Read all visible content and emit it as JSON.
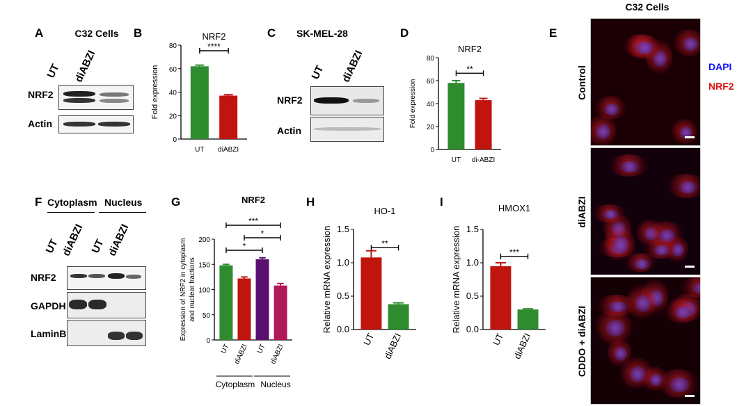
{
  "panel_letters": {
    "A": "A",
    "B": "B",
    "C": "C",
    "D": "D",
    "E": "E",
    "F": "F",
    "G": "G",
    "H": "H",
    "I": "I"
  },
  "panelA": {
    "title": "C32 Cells",
    "lanes": [
      "UT",
      "diABZI"
    ],
    "rows": [
      "NRF2",
      "Actin"
    ]
  },
  "panelC": {
    "title": "SK-MEL-28",
    "lanes": [
      "UT",
      "diABZI"
    ],
    "rows": [
      "NRF2",
      "Actin"
    ]
  },
  "panelF": {
    "groups": [
      "Cytoplasm",
      "Nucleus"
    ],
    "lanes": [
      "UT",
      "diABZI",
      "UT",
      "diABZI"
    ],
    "rows": [
      "NRF2",
      "GAPDH",
      "LaminB"
    ]
  },
  "panelE": {
    "title": "C32 Cells",
    "legend": [
      "DAPI",
      "NRF2"
    ],
    "legend_colors": [
      "#1010ff",
      "#e01010"
    ],
    "rows": [
      "Control",
      "diABZI",
      "CDDO + diABZI"
    ]
  },
  "chart_data": [
    {
      "id": "B",
      "type": "bar",
      "title": "NRF2",
      "categories": [
        "UT",
        "diABZI"
      ],
      "values": [
        62,
        37
      ],
      "errors": [
        1,
        0.8
      ],
      "colors": [
        "#2e8b2e",
        "#c0150f"
      ],
      "ylabel": "Fold expression",
      "ylim": [
        0,
        80
      ],
      "yticks": [
        0,
        20,
        40,
        60,
        80
      ],
      "annotations": [
        {
          "from": 0,
          "to": 1,
          "label": "****"
        }
      ]
    },
    {
      "id": "D",
      "type": "bar",
      "title": "NRF2",
      "categories": [
        "UT",
        "di-ABZI"
      ],
      "values": [
        58,
        43
      ],
      "errors": [
        2,
        1.5
      ],
      "colors": [
        "#2e8b2e",
        "#c0150f"
      ],
      "ylabel": "Fold expression",
      "ylim": [
        0,
        80
      ],
      "yticks": [
        0,
        20,
        40,
        60,
        80
      ],
      "annotations": [
        {
          "from": 0,
          "to": 1,
          "label": "**"
        }
      ]
    },
    {
      "id": "G",
      "type": "bar",
      "title": "NRF2",
      "categories": [
        "UT",
        "diABZI",
        "UT",
        "diABZI"
      ],
      "values": [
        148,
        122,
        160,
        108
      ],
      "errors": [
        2,
        3,
        3,
        4
      ],
      "colors": [
        "#2e8b2e",
        "#c0150f",
        "#5a1070",
        "#b0185a"
      ],
      "ylabel": "Expression of NRF2 in cytoplasm and nuclear fractions",
      "ylim": [
        0,
        200
      ],
      "yticks": [
        0,
        50,
        100,
        150,
        200
      ],
      "groups": [
        "Cytoplasm",
        "Nucleus"
      ],
      "annotations": [
        {
          "from": 0,
          "to": 3,
          "label": "***"
        },
        {
          "from": 1,
          "to": 3,
          "label": "*"
        },
        {
          "from": 0,
          "to": 2,
          "label": "*"
        }
      ]
    },
    {
      "id": "H",
      "type": "bar",
      "title": "HO-1",
      "categories": [
        "UT",
        "diABZI"
      ],
      "values": [
        1.08,
        0.38
      ],
      "errors": [
        0.1,
        0.02
      ],
      "colors": [
        "#c0150f",
        "#2e8b2e"
      ],
      "ylabel": "Relative mRNA expression",
      "ylim": [
        0,
        1.5
      ],
      "yticks": [
        "0.0",
        "0.5",
        "1.0",
        "1.5"
      ],
      "annotations": [
        {
          "from": 0,
          "to": 1,
          "label": "**"
        }
      ]
    },
    {
      "id": "I",
      "type": "bar",
      "title": "HMOX1",
      "categories": [
        "UT",
        "diABZI"
      ],
      "values": [
        0.95,
        0.3
      ],
      "errors": [
        0.05,
        0.01
      ],
      "colors": [
        "#c0150f",
        "#2e8b2e"
      ],
      "ylabel": "Relative mRNA expression",
      "ylim": [
        0,
        1.5
      ],
      "yticks": [
        "0.0",
        "0.5",
        "1.0",
        "1.5"
      ],
      "annotations": [
        {
          "from": 0,
          "to": 1,
          "label": "***"
        }
      ]
    }
  ]
}
